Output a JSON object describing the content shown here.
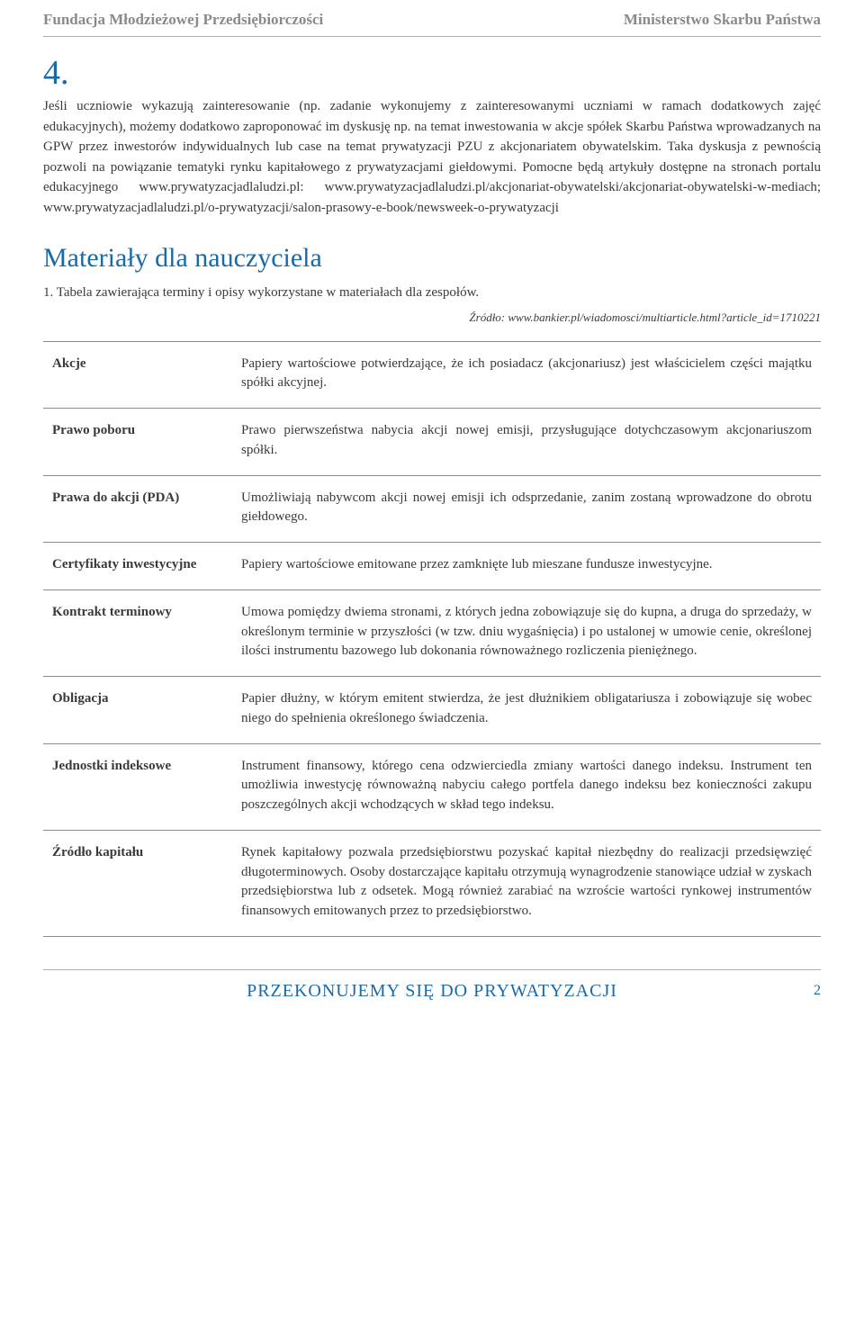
{
  "header": {
    "left": "Fundacja Młodzieżowej Przedsiębiorczości",
    "right": "Ministerstwo Skarbu Państwa"
  },
  "section_number": "4.",
  "body_paragraph": "Jeśli uczniowie wykazują zainteresowanie (np. zadanie wykonujemy z zainteresowanymi uczniami w ramach dodatkowych zajęć edukacyjnych), możemy dodatkowo zaproponować im dyskusję np. na temat inwestowania w akcje spółek Skarbu Państwa wprowadzanych na GPW przez inwestorów indywidualnych lub case na temat prywatyzacji PZU z akcjonariatem obywatelskim. Taka dyskusja z pewnością pozwoli na powiązanie tematyki rynku kapitałowego z prywatyzacjami giełdowymi. Pomocne będą artykuły dostępne na stronach portalu edukacyjnego www.prywatyzacjadlaludzi.pl: www.prywatyzacjadlaludzi.pl/akcjonariat-obywatelski/akcjonariat-obywatelski-w-mediach; www.prywatyzacjadlaludzi.pl/o-prywatyzacji/salon-prasowy-e-book/newsweek-o-prywatyzacji",
  "materials_heading": "Materiały dla nauczyciela",
  "materials_intro": "1. Tabela zawierająca terminy i opisy wykorzystane w materiałach dla zespołów.",
  "source_line": "Źródło: www.bankier.pl/wiadomosci/multiarticle.html?article_id=1710221",
  "terms_table": {
    "columns": [
      "term",
      "definition"
    ],
    "col_widths": [
      "210px",
      "auto"
    ],
    "rows": [
      {
        "term": "Akcje",
        "definition": "Papiery wartościowe potwierdzające, że ich posiadacz (akcjonariusz) jest właścicielem części majątku spółki akcyjnej."
      },
      {
        "term": "Prawo poboru",
        "definition": "Prawo pierwszeństwa nabycia akcji nowej emisji, przysługujące dotychczasowym akcjonariuszom spółki."
      },
      {
        "term": "Prawa do akcji (PDA)",
        "definition": "Umożliwiają nabywcom akcji nowej emisji ich odsprzedanie, zanim zostaną wprowadzone do obrotu giełdowego."
      },
      {
        "term": "Certyfikaty inwestycyjne",
        "definition": "Papiery wartościowe emitowane przez zamknięte lub mieszane fundusze inwestycyjne."
      },
      {
        "term": "Kontrakt terminowy",
        "definition": "Umowa pomiędzy dwiema stronami, z których jedna zobowiązuje się do kupna, a druga do sprzedaży, w określonym terminie w przyszłości (w tzw. dniu wygaśnięcia) i po ustalonej w umowie cenie, określonej ilości instrumentu bazowego lub dokonania równoważnego rozliczenia pieniężnego."
      },
      {
        "term": "Obligacja",
        "definition": "Papier dłużny, w którym emitent stwierdza, że jest dłużnikiem obligatariusza i zobowiązuje się wobec niego do spełnienia określonego świadczenia."
      },
      {
        "term": "Jednostki indeksowe",
        "definition": "Instrument finansowy, którego cena odzwierciedla zmiany wartości danego indeksu. Instrument ten umożliwia inwestycję równoważną nabyciu całego portfela danego indeksu bez konieczności zakupu poszczególnych akcji wchodzących w skład tego indeksu."
      },
      {
        "term": "Źródło kapitału",
        "definition": "Rynek kapitałowy pozwala przedsiębiorstwu pozyskać kapitał niezbędny do realizacji przedsięwzięć długoterminowych. Osoby dostarczające kapitału otrzymują wynagrodzenie stanowiące udział w zyskach przedsiębiorstwa lub z odsetek. Mogą również zarabiać na wzroście wartości rynkowej instrumentów finansowych emitowanych przez to przedsiębiorstwo."
      }
    ],
    "border_color": "#8a8a8a",
    "font_size": 15
  },
  "footer": {
    "title": "PRZEKONUJEMY SIĘ DO PRYWATYZACJI",
    "page": "2"
  },
  "colors": {
    "accent_blue": "#1a6aa8",
    "header_gray": "#8a8a8a",
    "text": "#3a3a3a",
    "rule": "#b0b0b0",
    "background": "#ffffff"
  },
  "typography": {
    "body_font": "Georgia serif",
    "body_size_pt": 11,
    "heading_size_pt": 22,
    "section_num_size_pt": 28
  }
}
